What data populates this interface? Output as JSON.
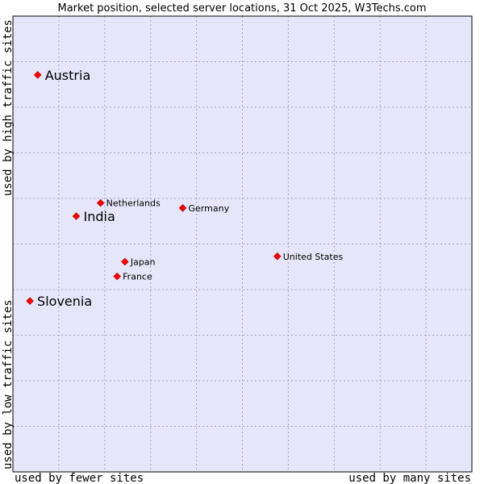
{
  "chart_data": {
    "type": "scatter",
    "title": "Market position, selected server locations, 31 Oct 2025, W3Techs.com",
    "xlabel_low": "used by fewer sites",
    "xlabel_high": "used by many sites",
    "ylabel_low": "used by low traffic sites",
    "ylabel_high": "used by high traffic sites",
    "xlim": [
      0,
      10
    ],
    "ylim": [
      0,
      10
    ],
    "grid": true,
    "colors": {
      "plot_bg": "#e6e6fa",
      "grid": "#a3a3c8",
      "marker": "#ff0000",
      "marker_edge": "#b00000",
      "frame": "#000000"
    },
    "points": [
      {
        "name": "Austria",
        "x": 0.54,
        "y": 8.71,
        "size": "large"
      },
      {
        "name": "India",
        "x": 1.38,
        "y": 5.61,
        "size": "large"
      },
      {
        "name": "Slovenia",
        "x": 0.37,
        "y": 3.75,
        "size": "large"
      },
      {
        "name": "Netherlands",
        "x": 1.91,
        "y": 5.9,
        "size": "small"
      },
      {
        "name": "Germany",
        "x": 3.7,
        "y": 5.79,
        "size": "small"
      },
      {
        "name": "United States",
        "x": 5.76,
        "y": 4.73,
        "size": "small"
      },
      {
        "name": "Japan",
        "x": 2.44,
        "y": 4.61,
        "size": "small"
      },
      {
        "name": "France",
        "x": 2.27,
        "y": 4.29,
        "size": "small"
      }
    ]
  }
}
